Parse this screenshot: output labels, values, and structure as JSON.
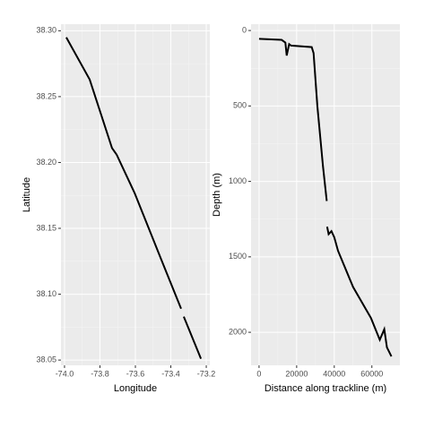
{
  "chart_data": [
    {
      "type": "line",
      "x_label": "Longitude",
      "y_label": "Latitude",
      "color": "#000000",
      "grid": true,
      "x": [
        -73.99,
        -73.858,
        -73.732,
        -73.706,
        -73.605,
        -73.453,
        -73.342,
        null,
        -73.327,
        -73.23
      ],
      "series": [
        {
          "color": "#000000",
          "values": [
            38.295,
            38.263,
            38.211,
            38.206,
            38.177,
            38.126,
            38.089,
            null,
            38.083,
            38.051
          ]
        }
      ],
      "xlim": [
        -74.02,
        -73.18
      ],
      "xticks": [
        {
          "value": -74.0,
          "label": "-74.0"
        },
        {
          "value": -73.8,
          "label": "-73.8"
        },
        {
          "value": -73.6,
          "label": "-73.6"
        },
        {
          "value": -73.4,
          "label": "-73.4"
        },
        {
          "value": -73.2,
          "label": "-73.2"
        }
      ],
      "ylim": [
        38.046,
        38.305
      ],
      "yticks": [
        38.05,
        {
          "value": 38.1,
          "label": "38.10"
        },
        38.15,
        {
          "value": 38.2,
          "label": "38.20"
        },
        38.25,
        {
          "value": 38.3,
          "label": "38.30"
        }
      ]
    },
    {
      "type": "line",
      "x_label": "Distance along trackline (m)",
      "y_label": "Depth (m)",
      "grid": true,
      "x": [
        0,
        12000,
        14000,
        14700,
        16000,
        17000,
        28000,
        29000,
        31000,
        34000,
        36000,
        null,
        36200,
        37000,
        38500,
        40000,
        42000,
        50000,
        59500,
        64200,
        66600,
        68000,
        70400
      ],
      "series": [
        {
          "color": "#000000",
          "values": [
            55,
            62,
            80,
            166,
            90,
            100,
            110,
            150,
            500,
            900,
            1130,
            null,
            1300,
            1350,
            1330,
            1370,
            1460,
            1700,
            1905,
            2050,
            1980,
            2100,
            2160
          ]
        }
      ],
      "xlim": [
        -4252,
        74900
      ],
      "xticks": [
        0,
        20000,
        40000,
        60000
      ],
      "ylim": [
        2219,
        -42
      ],
      "yticks": [
        0,
        500,
        1000,
        1500,
        2000
      ]
    }
  ]
}
